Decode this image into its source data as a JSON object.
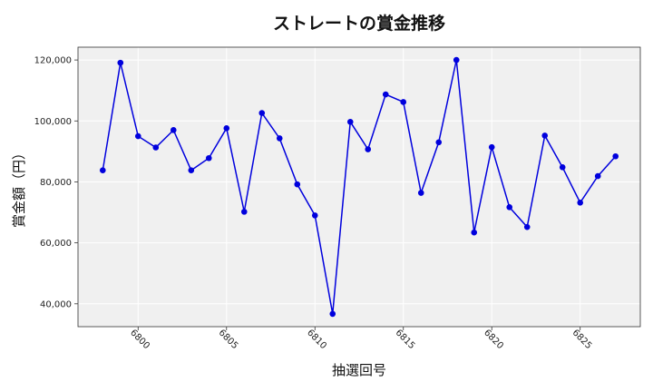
{
  "chart_data": {
    "type": "line",
    "title": "ストレートの賞金推移",
    "xlabel": "抽選回号",
    "ylabel": "賞金額（円）",
    "x": [
      6798,
      6799,
      6800,
      6801,
      6802,
      6803,
      6804,
      6805,
      6806,
      6807,
      6808,
      6809,
      6810,
      6811,
      6812,
      6813,
      6814,
      6815,
      6816,
      6817,
      6818,
      6819,
      6820,
      6821,
      6822,
      6823,
      6824,
      6825,
      6826,
      6827
    ],
    "series": [
      {
        "values": [
          83800,
          119100,
          95000,
          91300,
          97000,
          83800,
          87800,
          97600,
          70200,
          102600,
          94300,
          79200,
          69000,
          36700,
          99700,
          90700,
          108700,
          106200,
          76400,
          93000,
          120000,
          63400,
          91400,
          71700,
          65200,
          95200,
          84800,
          73200,
          81900,
          88400
        ],
        "color": "#0000dd"
      }
    ],
    "xticks": [
      "6800",
      "6805",
      "6810",
      "6815",
      "6820",
      "6825"
    ],
    "yticks": [
      "40,000",
      "60,000",
      "80,000",
      "100,000",
      "120,000"
    ],
    "xlim": [
      6796.6,
      6828.4
    ],
    "ylim": [
      32500,
      124200
    ],
    "grid": true,
    "plot_background": "#f0f0f0",
    "grid_color": "#ffffff"
  }
}
